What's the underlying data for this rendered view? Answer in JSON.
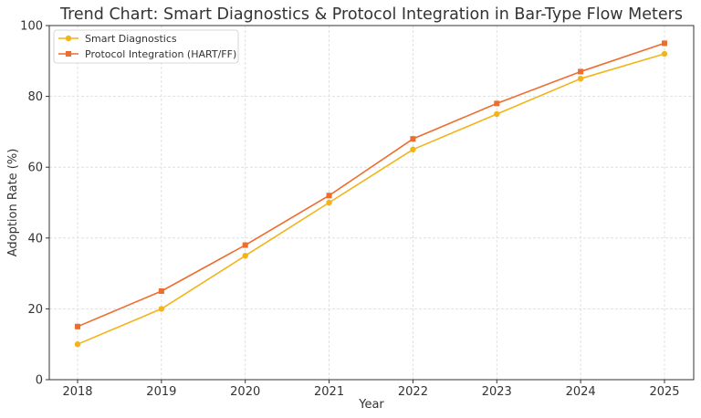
{
  "chart_data": {
    "type": "line",
    "title": "Trend Chart: Smart Diagnostics & Protocol Integration in Bar-Type Flow Meters",
    "xlabel": "Year",
    "ylabel": "Adoption Rate (%)",
    "x": [
      "2018",
      "2019",
      "2020",
      "2021",
      "2022",
      "2023",
      "2024",
      "2025"
    ],
    "ylim": [
      0,
      100
    ],
    "yticks": [
      "0",
      "20",
      "40",
      "60",
      "80",
      "100"
    ],
    "grid": true,
    "legend_position": "top-left",
    "series": [
      {
        "name": "Smart Diagnostics",
        "color": "#f2b418",
        "marker": "circle",
        "values": [
          10,
          20,
          35,
          50,
          65,
          75,
          85,
          92
        ]
      },
      {
        "name": "Protocol Integration (HART/FF)",
        "color": "#ee6c2d",
        "marker": "square",
        "values": [
          15,
          25,
          38,
          52,
          68,
          78,
          87,
          95
        ]
      }
    ]
  }
}
